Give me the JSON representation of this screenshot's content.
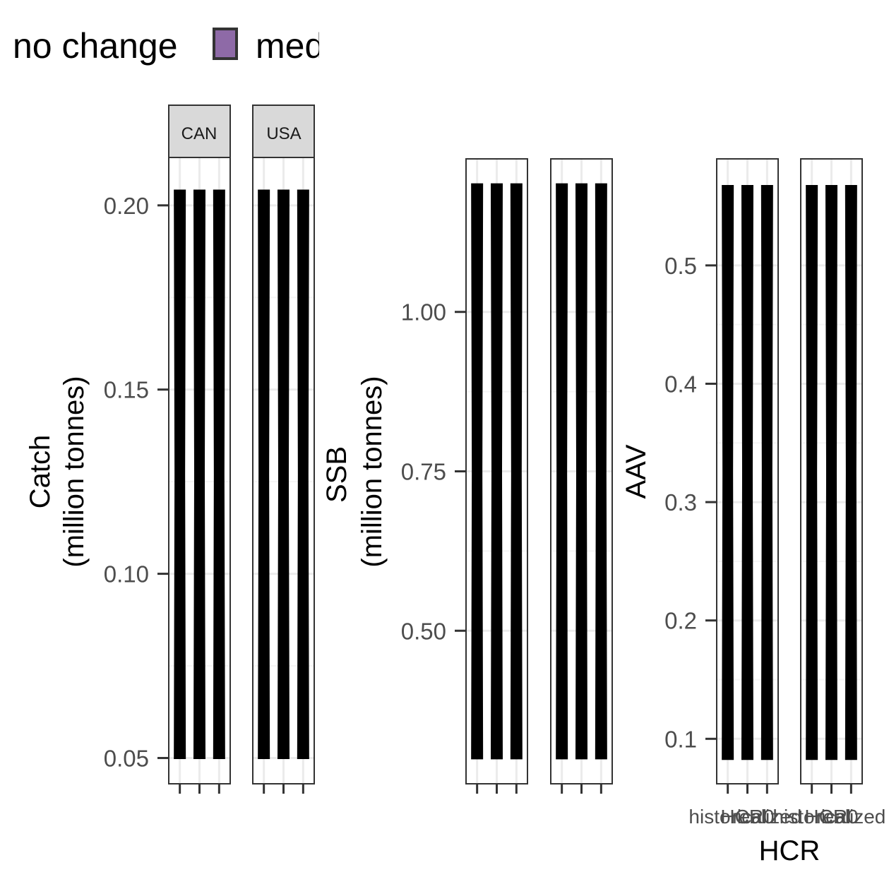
{
  "legend": {
    "items": [
      {
        "label": "no change",
        "color": ""
      },
      {
        "label": "med",
        "color": "#8e6aa7"
      }
    ]
  },
  "colors": {
    "violin": "#000000",
    "panel_border": "#333333",
    "strip_fill": "#d9d9d9",
    "grid_major": "#ebebeb",
    "grid_minor": "#f5f5f5",
    "tick_text": "#4d4d4d",
    "axis_title": "#000000"
  },
  "chart_data": [
    {
      "type": "violin",
      "ylabel": [
        "Catch",
        "(million tonnes)"
      ],
      "xlabel": "",
      "ylim": [
        0.043,
        0.213
      ],
      "yticks": [
        "0.20",
        "0.15",
        "0.10",
        "0.05"
      ],
      "ytick_values": [
        0.2,
        0.15,
        0.1,
        0.05
      ],
      "facets": [
        {
          "strip": "CAN",
          "groups": [
            {
              "min": 0.05,
              "max": 0.204
            },
            {
              "min": 0.05,
              "max": 0.204
            },
            {
              "min": 0.05,
              "max": 0.204
            }
          ]
        },
        {
          "strip": "USA",
          "groups": [
            {
              "min": 0.05,
              "max": 0.204
            },
            {
              "min": 0.05,
              "max": 0.204
            },
            {
              "min": 0.05,
              "max": 0.204
            }
          ]
        }
      ]
    },
    {
      "type": "violin",
      "ylabel": [
        "SSB",
        "(million tonnes)"
      ],
      "xlabel": "",
      "ylim": [
        0.26,
        1.24
      ],
      "yticks": [
        "1.00",
        "0.75",
        "0.50"
      ],
      "ytick_values": [
        1.0,
        0.75,
        0.5
      ],
      "facets": [
        {
          "strip": "",
          "groups": [
            {
              "min": 0.3,
              "max": 1.2
            },
            {
              "min": 0.3,
              "max": 1.2
            },
            {
              "min": 0.3,
              "max": 1.2
            }
          ]
        },
        {
          "strip": "",
          "groups": [
            {
              "min": 0.3,
              "max": 1.2
            },
            {
              "min": 0.3,
              "max": 1.2
            },
            {
              "min": 0.3,
              "max": 1.2
            }
          ]
        }
      ]
    },
    {
      "type": "violin",
      "ylabel": [
        "AAV"
      ],
      "xlabel": "HCR",
      "ylim": [
        0.062,
        0.59
      ],
      "yticks": [
        "0.5",
        "0.4",
        "0.3",
        "0.2",
        "0.1"
      ],
      "ytick_values": [
        0.5,
        0.4,
        0.3,
        0.2,
        0.1
      ],
      "xticks": [
        "historical",
        "HCR0",
        "realized"
      ],
      "facets": [
        {
          "strip": "",
          "groups": [
            {
              "min": 0.083,
              "max": 0.567
            },
            {
              "min": 0.083,
              "max": 0.567
            },
            {
              "min": 0.083,
              "max": 0.567
            }
          ]
        },
        {
          "strip": "",
          "groups": [
            {
              "min": 0.083,
              "max": 0.567
            },
            {
              "min": 0.083,
              "max": 0.567
            },
            {
              "min": 0.083,
              "max": 0.567
            }
          ]
        }
      ]
    }
  ]
}
